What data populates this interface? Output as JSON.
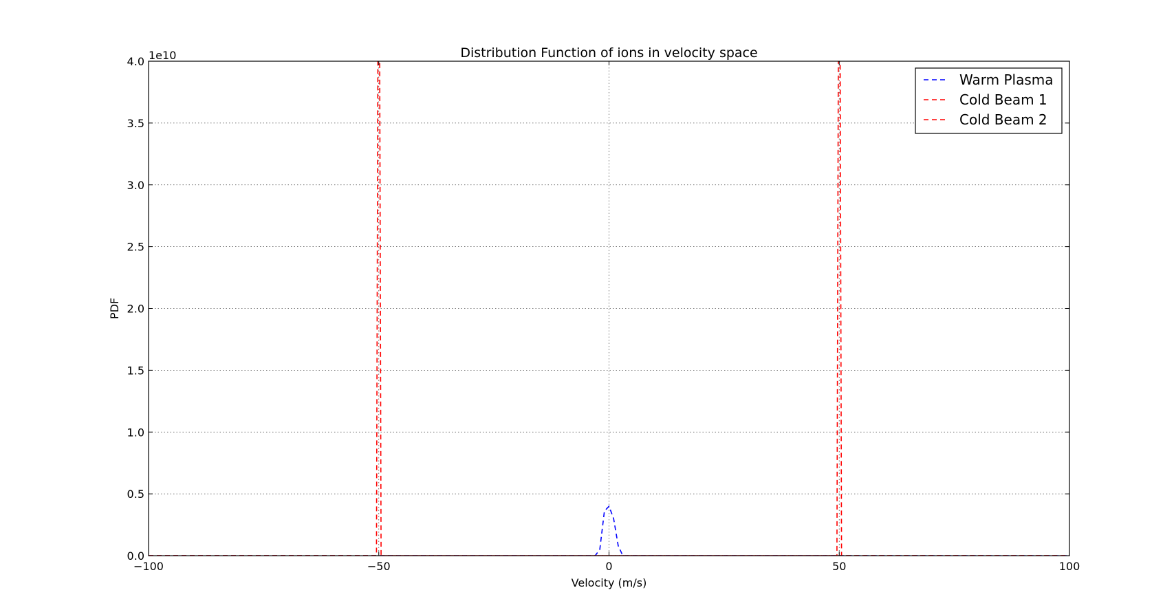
{
  "chart_data": {
    "type": "line",
    "title": "Distribution Function of ions in velocity space",
    "xlabel": "Velocity (m/s)",
    "ylabel": "PDF",
    "y_offset_label": "1e10",
    "xlim": [
      -100,
      100
    ],
    "ylim": [
      0,
      4.0
    ],
    "xticks": [
      -100,
      -50,
      0,
      50,
      100
    ],
    "xtick_labels": [
      "−100",
      "−50",
      "0",
      "50",
      "100"
    ],
    "yticks": [
      0,
      0.5,
      1.0,
      1.5,
      2.0,
      2.5,
      3.0,
      3.5,
      4.0
    ],
    "ytick_labels": [
      "0.0",
      "0.5",
      "1.0",
      "1.5",
      "2.0",
      "2.5",
      "3.0",
      "3.5",
      "4.0"
    ],
    "grid": true,
    "legend_position": "top-right",
    "series": [
      {
        "name": "Warm Plasma",
        "color": "#0000ff",
        "style": "dashed",
        "x": [
          -100,
          -3,
          -2,
          -1,
          0,
          1,
          2,
          3,
          100
        ],
        "y": [
          0,
          0,
          0.05,
          0.36,
          0.4,
          0.3,
          0.08,
          0,
          0
        ]
      },
      {
        "name": "Cold Beam 1",
        "color": "#ff0000",
        "style": "dashed",
        "x": [
          -100,
          -50.5,
          -50.2,
          -50,
          -49.8,
          -49.5,
          100
        ],
        "y": [
          0,
          0,
          4.0,
          4.0,
          4.0,
          0,
          0
        ]
      },
      {
        "name": "Cold Beam 2",
        "color": "#ff0000",
        "style": "dashed",
        "x": [
          -100,
          49.5,
          49.8,
          50,
          50.2,
          50.5,
          100
        ],
        "y": [
          0,
          0,
          4.0,
          4.0,
          4.0,
          0,
          0
        ]
      }
    ]
  }
}
